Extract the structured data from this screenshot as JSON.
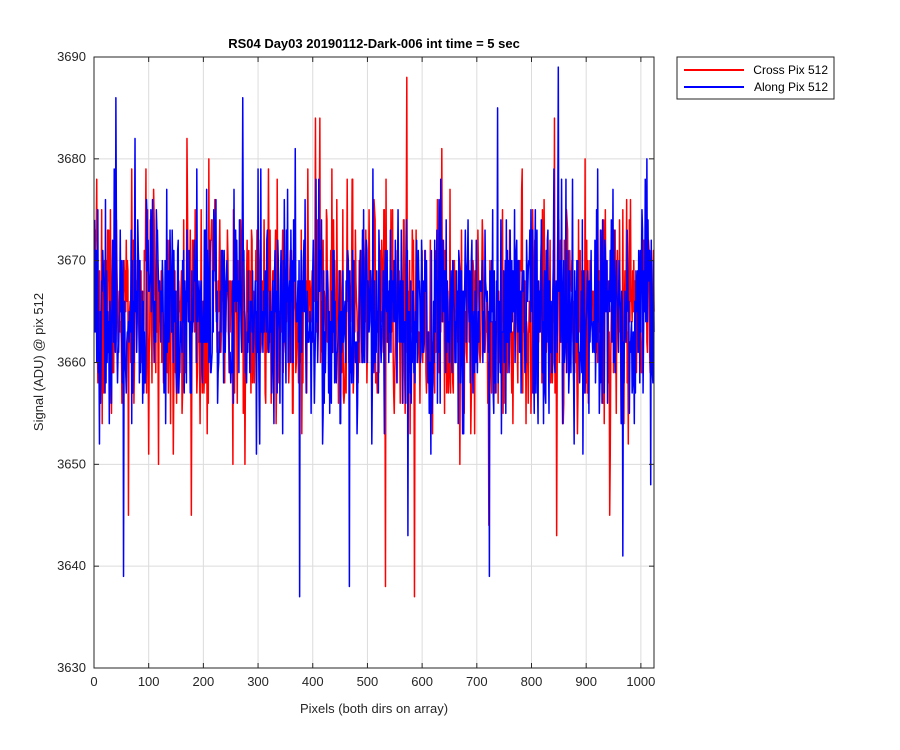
{
  "chart_data": {
    "type": "line",
    "title": "RS04 Day03 20190112-Dark-006 int time = 5 sec",
    "xlabel": "Pixels (both dirs on array)",
    "ylabel": "Signal (ADU) @ pix 512",
    "xlim": [
      0,
      1024
    ],
    "ylim": [
      3630,
      3690
    ],
    "x_ticks": [
      0,
      100,
      200,
      300,
      400,
      500,
      600,
      700,
      800,
      900,
      1000
    ],
    "y_ticks": [
      3630,
      3640,
      3650,
      3660,
      3670,
      3680,
      3690
    ],
    "grid": true,
    "legend_position": "outside top-right",
    "series": [
      {
        "name": "Cross Pix 512",
        "color": "#ff0000",
        "x_start": 1,
        "x_step": 1,
        "noise": {
          "baseline": 3665,
          "sd": 5.5,
          "seed": 7
        },
        "peaks": [
          {
            "x": 170,
            "y": 3682
          },
          {
            "x": 210,
            "y": 3680
          },
          {
            "x": 405,
            "y": 3684
          },
          {
            "x": 413,
            "y": 3684
          },
          {
            "x": 572,
            "y": 3688
          },
          {
            "x": 636,
            "y": 3681
          },
          {
            "x": 842,
            "y": 3684
          },
          {
            "x": 898,
            "y": 3680
          }
        ],
        "troughs": [
          {
            "x": 63,
            "y": 3645
          },
          {
            "x": 178,
            "y": 3645
          },
          {
            "x": 533,
            "y": 3638
          },
          {
            "x": 586,
            "y": 3637
          },
          {
            "x": 722,
            "y": 3644
          },
          {
            "x": 846,
            "y": 3643
          },
          {
            "x": 943,
            "y": 3645
          }
        ]
      },
      {
        "name": "Along Pix 512",
        "color": "#0000ff",
        "x_start": 1,
        "x_step": 1,
        "noise": {
          "baseline": 3665,
          "sd": 5.5,
          "seed": 19
        },
        "peaks": [
          {
            "x": 40,
            "y": 3686
          },
          {
            "x": 75,
            "y": 3682
          },
          {
            "x": 272,
            "y": 3686
          },
          {
            "x": 368,
            "y": 3681
          },
          {
            "x": 738,
            "y": 3685
          },
          {
            "x": 849,
            "y": 3689
          },
          {
            "x": 1011,
            "y": 3680
          }
        ],
        "troughs": [
          {
            "x": 54,
            "y": 3639
          },
          {
            "x": 376,
            "y": 3637
          },
          {
            "x": 467,
            "y": 3638
          },
          {
            "x": 574,
            "y": 3643
          },
          {
            "x": 723,
            "y": 3639
          },
          {
            "x": 967,
            "y": 3641
          },
          {
            "x": 1018,
            "y": 3648
          }
        ]
      }
    ]
  }
}
